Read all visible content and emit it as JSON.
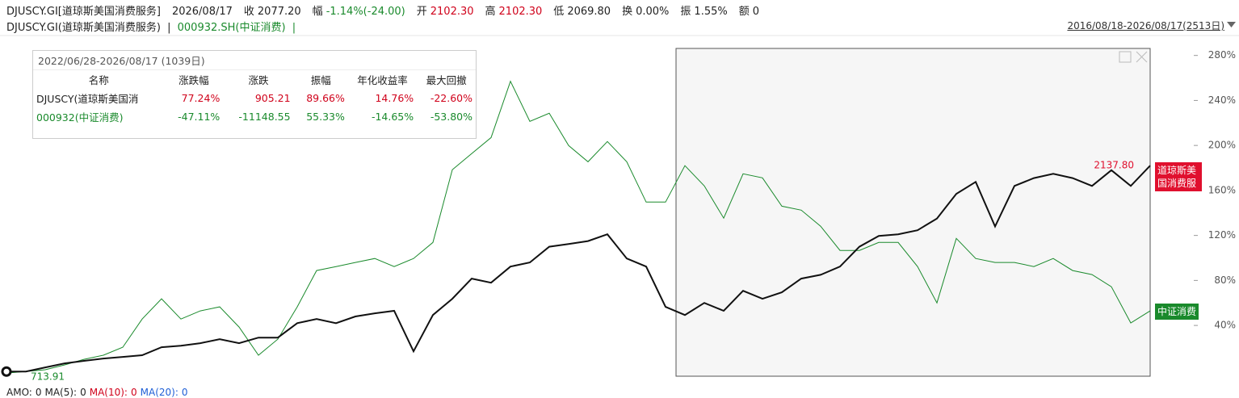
{
  "header": {
    "code": "DJUSCY.GI[道琼斯美国消费服务]",
    "date": "2026/08/17",
    "fields": [
      {
        "label": "收",
        "value": "2077.20"
      },
      {
        "label": "幅",
        "value": "-1.14%(-24.00)"
      },
      {
        "label": "开",
        "value": "2102.30"
      },
      {
        "label": "高",
        "value": "2102.30"
      },
      {
        "label": "低",
        "value": "2069.80"
      },
      {
        "label": "换",
        "value": "0.00%"
      },
      {
        "label": "振",
        "value": "1.55%"
      },
      {
        "label": "额",
        "value": "0"
      }
    ]
  },
  "legend_line": {
    "items": [
      "DJUSCY.GI(道琼斯美国消费服务)",
      "000932.SH(中证消费)"
    ],
    "separator": "|",
    "range": "2016/08/18-2026/08/17(2513日)"
  },
  "stats_table": {
    "title": "2022/06/28-2026/08/17 (1039日)",
    "columns": [
      "名称",
      "涨跌幅",
      "涨跌",
      "振幅",
      "年化收益率",
      "最大回撤"
    ],
    "rows": [
      [
        "DJUSCY(道琼斯美国消",
        "77.24%",
        "905.21",
        "89.66%",
        "14.76%",
        "-22.60%"
      ],
      [
        "000932(中证消费)",
        "-47.11%",
        "-11148.55",
        "55.33%",
        "-14.65%",
        "-53.80%"
      ]
    ]
  },
  "footer": {
    "items": [
      {
        "label": "AMO:",
        "value": "0"
      },
      {
        "label": "MA(5):",
        "value": "0"
      },
      {
        "label": "MA(10):",
        "value": "0"
      },
      {
        "label": "MA(20):",
        "value": "0"
      }
    ]
  },
  "chart_data": {
    "type": "line",
    "ylim": [
      -8,
      297
    ],
    "yticks": [
      {
        "value": 40,
        "label": "40%"
      },
      {
        "value": 80,
        "label": "80%"
      },
      {
        "value": 120,
        "label": "120%"
      },
      {
        "value": 160,
        "label": "160%"
      },
      {
        "value": 200,
        "label": "200%"
      },
      {
        "value": 240,
        "label": "240%"
      },
      {
        "value": 280,
        "label": "280%"
      }
    ],
    "start_label": "713.91",
    "end_label": "2137.80",
    "series": [
      {
        "name": "道琼斯美国消费服",
        "color": "#111111",
        "tag_color": "#e0102e",
        "values": [
          -1,
          -1,
          2.7,
          6.3,
          8.5,
          10.6,
          12,
          13.5,
          20.6,
          22,
          24.2,
          27.8,
          24.2,
          29.2,
          29.2,
          42,
          45.7,
          42,
          48,
          50.8,
          53,
          17,
          49.3,
          63.7,
          81.6,
          78,
          92.3,
          96,
          110,
          112.4,
          115,
          121,
          99.5,
          92.3,
          56.5,
          49.3,
          60,
          53,
          70.8,
          63.7,
          69.4,
          81.6,
          85,
          92.3,
          110,
          119.6,
          121,
          124.6,
          135,
          157,
          167.6,
          128,
          164,
          171,
          174.8,
          171,
          164,
          178,
          164,
          182
        ]
      },
      {
        "name": "中证消费",
        "color": "#1a8a2c",
        "tag_color": "#1a8a2c",
        "values": [
          -2.3,
          -0.9,
          0.6,
          4.9,
          9.9,
          13.5,
          20.6,
          45.7,
          63.7,
          45.7,
          52.9,
          56.5,
          38.6,
          13.5,
          27.8,
          56.5,
          88.8,
          92.3,
          96,
          99.5,
          92.3,
          99.5,
          113.8,
          178.4,
          192.7,
          207,
          257,
          221.4,
          228.6,
          199.9,
          185.5,
          203.5,
          185.5,
          149.7,
          149.7,
          182,
          164,
          135.4,
          174.8,
          171.2,
          146,
          142.5,
          128.2,
          106.7,
          106.7,
          113.8,
          113.8,
          92.3,
          60,
          117.4,
          99.5,
          96,
          96,
          92.3,
          99.5,
          88.8,
          85.2,
          74.4,
          42.2,
          52.9
        ]
      }
    ]
  }
}
